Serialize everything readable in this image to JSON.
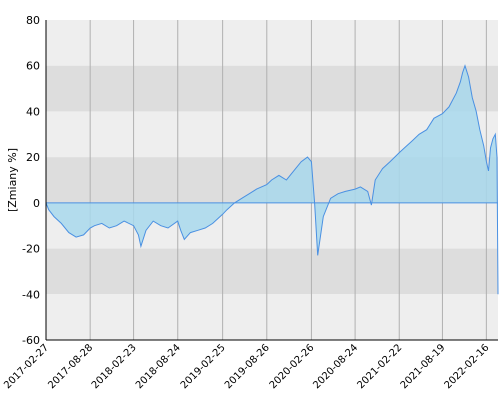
{
  "chart_data": {
    "type": "area",
    "title": "",
    "xlabel": "",
    "ylabel": "[Zmiany %]",
    "ylim": [
      -60,
      80
    ],
    "xlim": [
      "2017-02-27",
      "2022-04-05"
    ],
    "yticks": [
      80,
      60,
      40,
      20,
      0,
      -20,
      -40,
      -60
    ],
    "ytick_labels": [
      "80",
      "60",
      "40",
      "20",
      "0",
      "-20",
      "-40",
      "-60"
    ],
    "xticks": [
      "2017-02-27",
      "2017-08-28",
      "2018-02-23",
      "2018-08-24",
      "2019-02-25",
      "2019-08-26",
      "2020-02-26",
      "2020-08-24",
      "2021-02-22",
      "2021-08-19",
      "2022-02-16"
    ],
    "grid": true,
    "legend": "none",
    "colors": {
      "line": "#4a90e2",
      "fill": "#a8d8ec",
      "band_light": "#eeeeee",
      "band_dark": "#dddddd",
      "vgrid": "#b0b0b0",
      "axis": "#000000"
    },
    "series": [
      {
        "x": [
          "2017-02-27",
          "2017-03-10",
          "2017-04-01",
          "2017-05-01",
          "2017-06-01",
          "2017-07-01",
          "2017-08-01",
          "2017-08-28",
          "2017-09-15",
          "2017-10-15",
          "2017-11-15",
          "2017-12-15",
          "2018-01-15",
          "2018-02-23",
          "2018-03-15",
          "2018-03-25",
          "2018-04-15",
          "2018-05-15",
          "2018-06-15",
          "2018-07-15",
          "2018-08-24",
          "2018-09-05",
          "2018-09-20",
          "2018-10-15",
          "2018-11-15",
          "2018-12-15",
          "2019-01-15",
          "2019-02-25",
          "2019-03-15",
          "2019-04-15",
          "2019-05-15",
          "2019-06-15",
          "2019-07-15",
          "2019-08-26",
          "2019-09-15",
          "2019-10-15",
          "2019-11-15",
          "2019-12-15",
          "2020-01-15",
          "2020-02-10",
          "2020-02-26",
          "2020-03-10",
          "2020-03-23",
          "2020-04-15",
          "2020-05-15",
          "2020-06-15",
          "2020-07-15",
          "2020-08-24",
          "2020-09-15",
          "2020-10-15",
          "2020-10-30",
          "2020-11-15",
          "2020-12-15",
          "2021-01-15",
          "2021-02-22",
          "2021-03-15",
          "2021-04-15",
          "2021-05-15",
          "2021-06-15",
          "2021-07-15",
          "2021-08-19",
          "2021-09-15",
          "2021-10-15",
          "2021-11-01",
          "2021-11-10",
          "2021-11-20",
          "2021-12-05",
          "2021-12-20",
          "2022-01-05",
          "2022-01-20",
          "2022-02-05",
          "2022-02-16",
          "2022-02-25",
          "2022-03-05",
          "2022-03-15",
          "2022-03-25",
          "2022-04-01",
          "2022-04-05"
        ],
        "y": [
          0,
          -3,
          -6,
          -9,
          -13,
          -15,
          -14,
          -11,
          -10,
          -9,
          -11,
          -10,
          -8,
          -10,
          -14,
          -19,
          -12,
          -8,
          -10,
          -11,
          -8,
          -12,
          -16,
          -13,
          -12,
          -11,
          -9,
          -5,
          -3,
          0,
          2,
          4,
          6,
          8,
          10,
          12,
          10,
          14,
          18,
          20,
          18,
          0,
          -23,
          -6,
          2,
          4,
          5,
          6,
          7,
          5,
          -1,
          10,
          15,
          18,
          22,
          24,
          27,
          30,
          32,
          37,
          39,
          42,
          48,
          53,
          57,
          60,
          55,
          46,
          40,
          32,
          25,
          18,
          14,
          24,
          28,
          30,
          20,
          -40
        ]
      }
    ]
  }
}
